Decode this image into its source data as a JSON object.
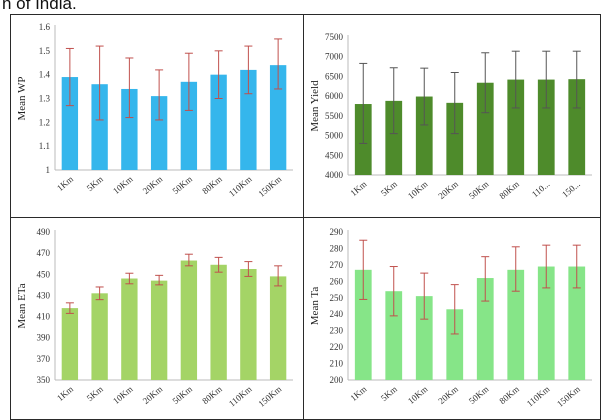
{
  "caption": "n of India.",
  "chart_data": [
    {
      "type": "bar",
      "ylabel": "Mean WP",
      "categories": [
        "1Km",
        "5Km",
        "10Km",
        "20Km",
        "50Km",
        "80Km",
        "110Km",
        "150Km"
      ],
      "values": [
        1.39,
        1.36,
        1.34,
        1.31,
        1.37,
        1.4,
        1.42,
        1.44
      ],
      "err_low": [
        1.27,
        1.21,
        1.22,
        1.21,
        1.25,
        1.3,
        1.32,
        1.34
      ],
      "err_high": [
        1.51,
        1.52,
        1.47,
        1.42,
        1.49,
        1.5,
        1.52,
        1.55
      ],
      "ylim": [
        1.0,
        1.6
      ],
      "yticks": [
        "1",
        "1.1",
        "1.2",
        "1.3",
        "1.4",
        "1.5",
        "1.6"
      ],
      "bar_color": "#35b6ec",
      "err_color": "#c0504d"
    },
    {
      "type": "bar",
      "ylabel": "Mean Yield",
      "categories": [
        "1Km",
        "5Km",
        "10Km",
        "20Km",
        "50Km",
        "80Km",
        "110...",
        "150..."
      ],
      "values": [
        5800,
        5880,
        5990,
        5830,
        6340,
        6420,
        6420,
        6430
      ],
      "err_low": [
        4800,
        5050,
        5270,
        5050,
        5580,
        5700,
        5700,
        5700
      ],
      "err_high": [
        6830,
        6720,
        6710,
        6600,
        7100,
        7140,
        7140,
        7140
      ],
      "ylim": [
        4000,
        7500
      ],
      "yticks": [
        "4000",
        "4500",
        "5000",
        "5500",
        "6000",
        "6500",
        "7000",
        "7500"
      ],
      "bar_color": "#4e8b2b",
      "err_color": "#555555"
    },
    {
      "type": "bar",
      "ylabel": "Mean ETa",
      "categories": [
        "1Km",
        "5Km",
        "10Km",
        "20Km",
        "50Km",
        "80Km",
        "110Km",
        "150Km"
      ],
      "values": [
        418,
        432,
        446,
        444,
        463,
        459,
        455,
        448
      ],
      "err_low": [
        413,
        426,
        441,
        440,
        458,
        452,
        448,
        439
      ],
      "err_high": [
        423,
        438,
        451,
        449,
        469,
        466,
        462,
        458
      ],
      "ylim": [
        350,
        490
      ],
      "yticks": [
        "350",
        "370",
        "390",
        "410",
        "430",
        "450",
        "470",
        "490"
      ],
      "bar_color": "#a4d466",
      "err_color": "#c0504d"
    },
    {
      "type": "bar",
      "ylabel": "Mean Ta",
      "categories": [
        "1Km",
        "5Km",
        "10Km",
        "20Km",
        "50Km",
        "80Km",
        "110Km",
        "150Km"
      ],
      "values": [
        267,
        254,
        251,
        243,
        262,
        267,
        269,
        269
      ],
      "err_low": [
        249,
        239,
        237,
        228,
        248,
        254,
        256,
        256
      ],
      "err_high": [
        285,
        269,
        265,
        258,
        275,
        281,
        282,
        282
      ],
      "ylim": [
        200,
        290
      ],
      "yticks": [
        "200",
        "210",
        "220",
        "230",
        "240",
        "250",
        "260",
        "270",
        "280",
        "290"
      ],
      "bar_color": "#86e588",
      "err_color": "#c0504d"
    }
  ]
}
